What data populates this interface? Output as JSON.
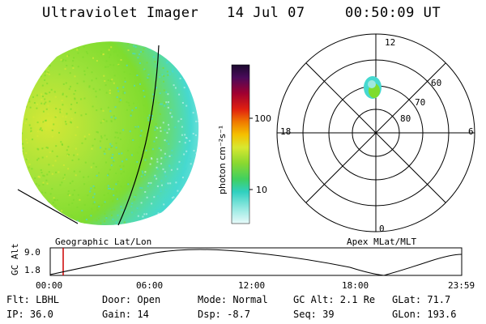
{
  "header": {
    "title": "Ultraviolet Imager",
    "date": "14 Jul 07",
    "time": "00:50:09 UT"
  },
  "colorbar": {
    "unit_label": "photon cm⁻²s⁻¹",
    "ticks": [
      "100",
      "10"
    ]
  },
  "polar": {
    "mlt_labels": {
      "top": "12",
      "left": "18",
      "right": "6",
      "bottom": "0"
    },
    "lat_labels": [
      "60",
      "70",
      "80"
    ]
  },
  "panel_labels": {
    "geo": "Geographic Lat/Lon",
    "apex": "Apex MLat/MLT"
  },
  "altitude_plot": {
    "ylabel": "GC Alt",
    "ymax": "9.0",
    "ymin": "1.8",
    "xticks": [
      "00:00",
      "06:00",
      "12:00",
      "18:00",
      "23:59"
    ]
  },
  "info": {
    "filter": "Flt: LBHL",
    "door": "Door: Open",
    "mode": "Mode: Normal",
    "gc_alt": "GC Alt: 2.1 Re",
    "glat": "GLat:  71.7",
    "ip": "IP: 36.0",
    "gain": "Gain: 14",
    "dsp": "Dsp:   -8.7",
    "seq": "Seq: 39",
    "glon": "GLon: 193.6"
  },
  "colors": {
    "earth_green": "#7fdc2e",
    "earth_yellow": "#d6e836",
    "earth_cyan": "#46d9d0",
    "earth_light": "#bff0ea",
    "marker_red": "#cc0000"
  }
}
